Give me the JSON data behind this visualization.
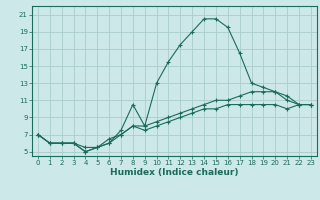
{
  "xlabel": "Humidex (Indice chaleur)",
  "background_color": "#cce8e8",
  "grid_color": "#aacccc",
  "line_color": "#1a6b5a",
  "xlim": [
    -0.5,
    23.5
  ],
  "ylim": [
    4.5,
    22.0
  ],
  "xticks": [
    0,
    1,
    2,
    3,
    4,
    5,
    6,
    7,
    8,
    9,
    10,
    11,
    12,
    13,
    14,
    15,
    16,
    17,
    18,
    19,
    20,
    21,
    22,
    23
  ],
  "yticks": [
    5,
    7,
    9,
    11,
    13,
    15,
    17,
    19,
    21
  ],
  "line1_x": [
    0,
    1,
    2,
    3,
    4,
    5,
    6,
    7,
    8,
    9,
    10,
    11,
    12,
    13,
    14,
    15,
    16,
    17,
    18,
    19,
    20,
    21,
    22,
    23
  ],
  "line1_y": [
    7.0,
    6.0,
    6.0,
    6.0,
    5.0,
    5.5,
    6.0,
    7.5,
    10.5,
    8.0,
    13.0,
    15.5,
    17.5,
    19.0,
    20.5,
    20.5,
    19.5,
    16.5,
    13.0,
    12.5,
    12.0,
    11.0,
    10.5,
    10.5
  ],
  "line2_x": [
    0,
    1,
    2,
    3,
    4,
    5,
    6,
    7,
    8,
    9,
    10,
    11,
    12,
    13,
    14,
    15,
    16,
    17,
    18,
    19,
    20,
    21,
    22,
    23
  ],
  "line2_y": [
    7.0,
    6.0,
    6.0,
    6.0,
    5.5,
    5.5,
    6.5,
    7.0,
    8.0,
    8.0,
    8.5,
    9.0,
    9.5,
    10.0,
    10.5,
    11.0,
    11.0,
    11.5,
    12.0,
    12.0,
    12.0,
    11.5,
    10.5,
    10.5
  ],
  "line3_x": [
    0,
    1,
    2,
    3,
    4,
    5,
    6,
    7,
    8,
    9,
    10,
    11,
    12,
    13,
    14,
    15,
    16,
    17,
    18,
    19,
    20,
    21,
    22,
    23
  ],
  "line3_y": [
    7.0,
    6.0,
    6.0,
    6.0,
    5.0,
    5.5,
    6.0,
    7.0,
    8.0,
    7.5,
    8.0,
    8.5,
    9.0,
    9.5,
    10.0,
    10.0,
    10.5,
    10.5,
    10.5,
    10.5,
    10.5,
    10.0,
    10.5,
    10.5
  ],
  "tick_fontsize": 5.0,
  "xlabel_fontsize": 6.5
}
